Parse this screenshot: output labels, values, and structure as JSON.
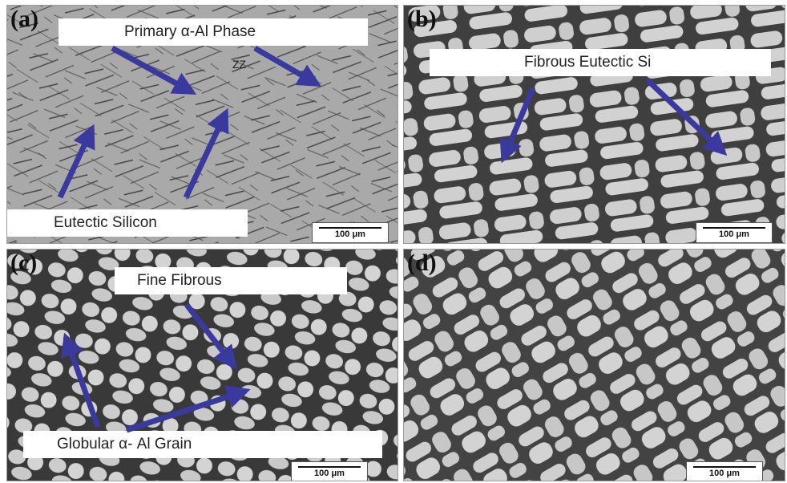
{
  "panels": [
    {
      "letter": "(a)",
      "scale": "100 μm",
      "tone": "#a8a8a8"
    },
    {
      "letter": "(b)",
      "scale": "100 μm",
      "tone": "#c9c9c9"
    },
    {
      "letter": "(c)",
      "scale": "100 μm",
      "tone": "#bdbdbd"
    },
    {
      "letter": "(d)",
      "scale": "100 μm",
      "tone": "#c6c6c6"
    }
  ],
  "labels": {
    "primary_al": "Primary α-Al Phase",
    "eutectic_silicon": "Eutectic Silicon",
    "fibrous_eutectic": "Fibrous Eutectic Si",
    "fine_fibrous": "Fine Fibrous",
    "globular_al": "Globular α- Al Grain",
    "zz": "ZZ"
  },
  "colors": {
    "arrow": "#3a3a9e",
    "phase_dark": "#3c3c3c",
    "grain_light": "#d6d6d6"
  }
}
